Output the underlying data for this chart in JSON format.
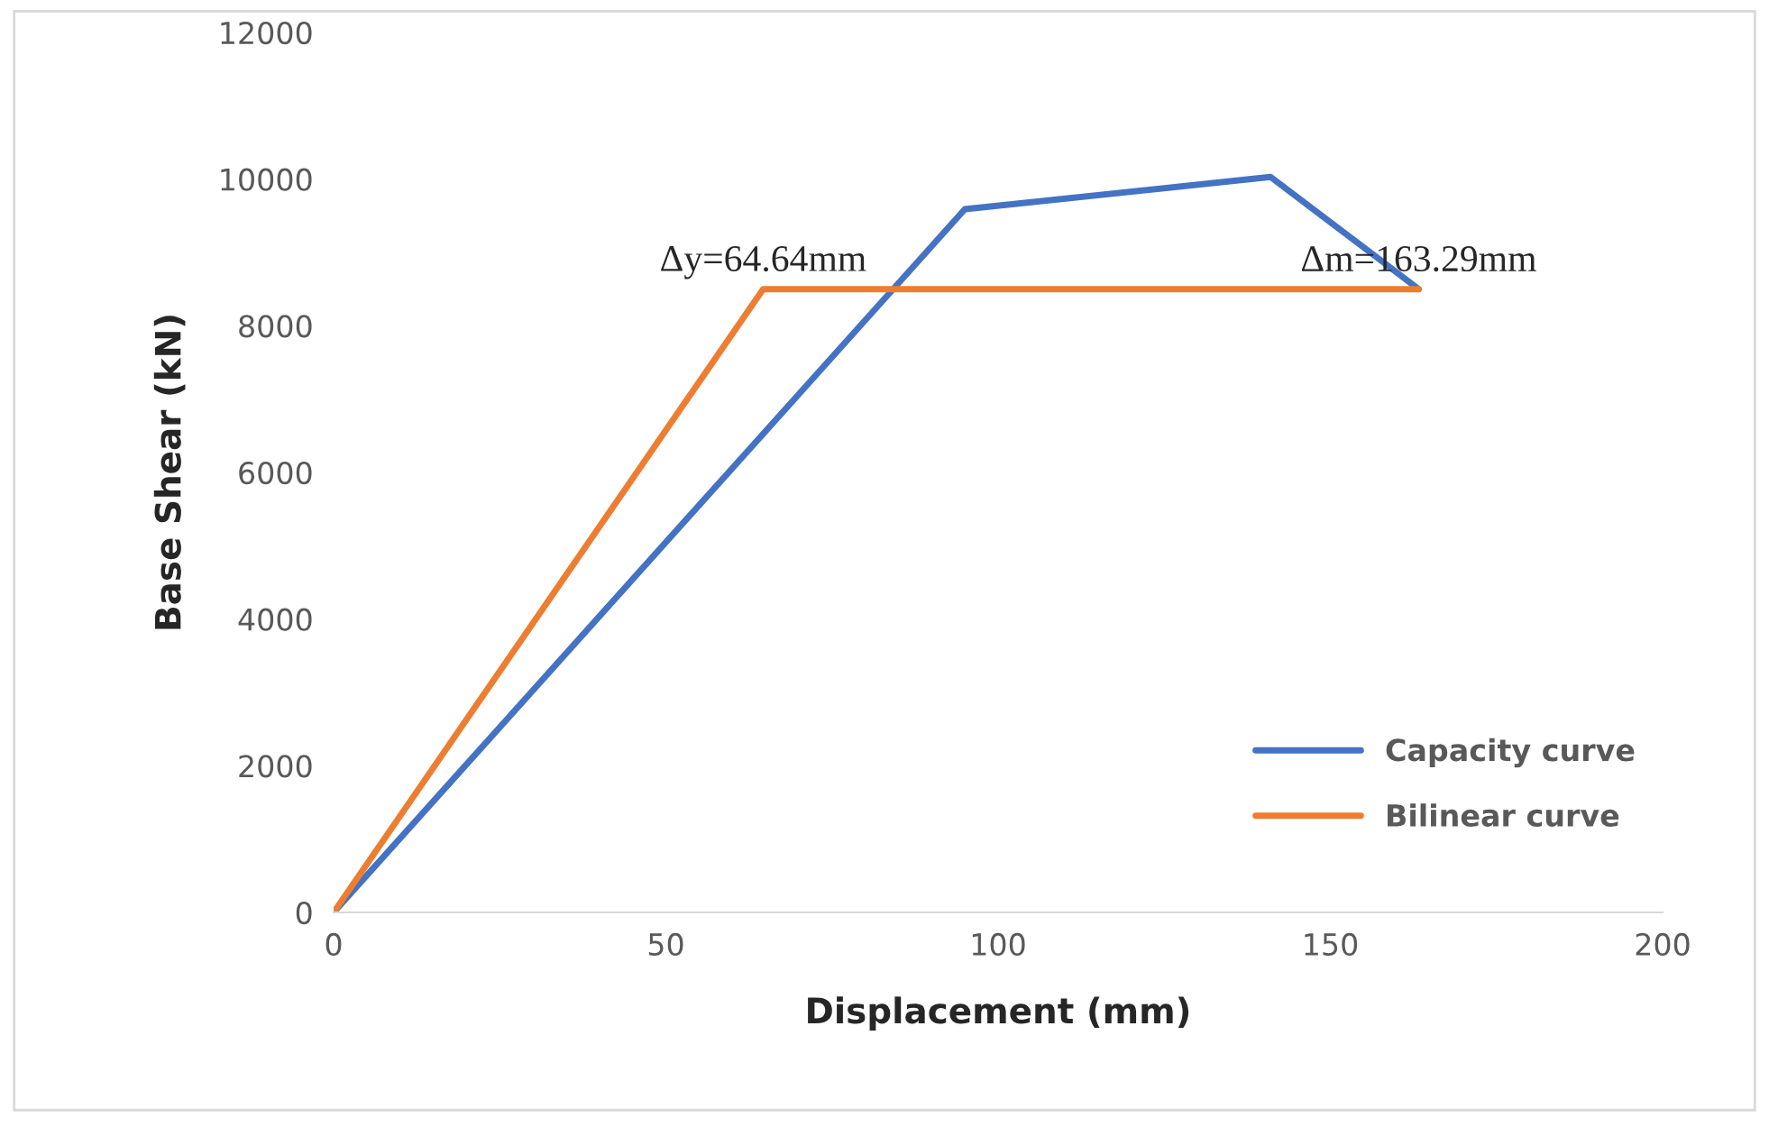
{
  "chart_data": {
    "type": "line",
    "xlabel": "Displacement (mm)",
    "ylabel": "Base Shear (kN)",
    "xlim": [
      0,
      200
    ],
    "xticks": [
      0,
      50,
      100,
      150,
      200
    ],
    "ylim": [
      0,
      12000
    ],
    "yticks": [
      0,
      2000,
      4000,
      6000,
      8000,
      10000,
      12000
    ],
    "grid": false,
    "legend": "bottom right",
    "marker": "none",
    "line_style": "solid",
    "series": [
      {
        "name": "Capacity curve",
        "color": "#4472c4",
        "x": [
          0,
          95,
          141,
          163.3
        ],
        "values": [
          0,
          9590,
          10030,
          8500
        ]
      },
      {
        "name": "Bilinear curve",
        "color": "#ed7d31",
        "x": [
          0,
          64.64,
          163.29
        ],
        "values": [
          0,
          8500,
          8500
        ]
      }
    ],
    "annotations": [
      {
        "text": "Δy=64.64mm",
        "x": 64.64,
        "y": 8500
      },
      {
        "text": "Δm=163.29mm",
        "x": 163.29,
        "y": 8500
      }
    ]
  }
}
